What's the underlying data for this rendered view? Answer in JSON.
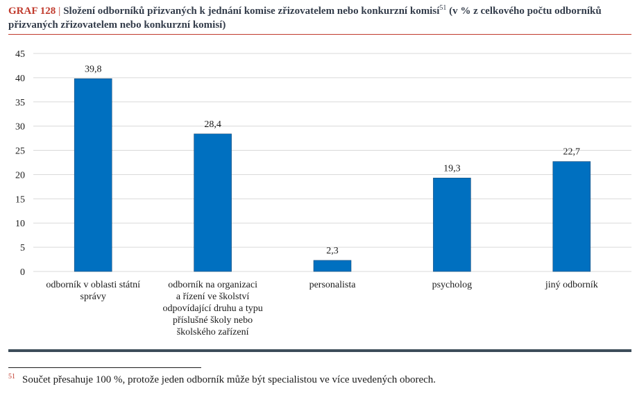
{
  "header": {
    "graf_label": "GRAF 128",
    "separator": "|",
    "title": "Složení odborníků přizvaných k jednání komise zřizovatelem nebo konkurzní komisí",
    "footnote_ref": "51",
    "title_suffix": " (v % z celkového počtu odborníků přizvaných zřizovatelem nebo konkurzní komisí)"
  },
  "footnote": {
    "mark": "51",
    "text": "Součet přesahuje 100 %, protože jeden odborník může být specialistou ve více uvedených oborech."
  },
  "colors": {
    "bar": "#0070c0",
    "grid": "#d9d9d9",
    "accent_red": "#c0392b"
  },
  "chart_data": {
    "type": "bar",
    "categories": [
      [
        "odborník v oblasti státní",
        "správy"
      ],
      [
        "odborník na organizaci",
        "a řízení ve školství",
        "odpovídající druhu a typu",
        "příslušné školy nebo",
        "školského zařízení"
      ],
      [
        "personalista"
      ],
      [
        "psycholog"
      ],
      [
        "jiný odborník"
      ]
    ],
    "values": [
      39.8,
      28.4,
      2.3,
      19.3,
      22.7
    ],
    "value_labels": [
      "39,8",
      "28,4",
      "2,3",
      "19,3",
      "22,7"
    ],
    "ylim": [
      0,
      45
    ],
    "yticks": [
      0,
      5,
      10,
      15,
      20,
      25,
      30,
      35,
      40,
      45
    ],
    "grid": true,
    "legend": "none"
  }
}
